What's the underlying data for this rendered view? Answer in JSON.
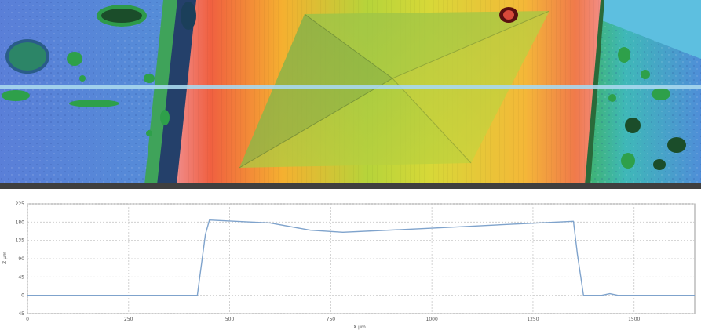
{
  "colors": {
    "separator": "#3f3f3f",
    "profile_line": "#7fa3cc",
    "grid": "#c8c8c8",
    "frame": "#9a9a9a",
    "scan_line": "#a8d8ee",
    "height_low": "#4b67c8",
    "height_mid": "#9fdc3a",
    "height_high": "#f07a4a"
  },
  "chart_data": {
    "type": "line",
    "title": "",
    "xlabel": "X µm",
    "ylabel": "Z µm",
    "xlim": [
      0,
      1650
    ],
    "ylim": [
      -45,
      225
    ],
    "grid": true,
    "legend": "none",
    "x_ticks": [
      0,
      250,
      500,
      750,
      1000,
      1250,
      1500
    ],
    "y_ticks": [
      -45,
      0,
      45,
      90,
      135,
      180,
      225
    ],
    "series": [
      {
        "name": "",
        "x": [
          0,
          420,
          440,
          450,
          600,
          700,
          780,
          1000,
          1200,
          1350,
          1360,
          1375,
          1420,
          1440,
          1460,
          1650
        ],
        "y": [
          0,
          0,
          150,
          185,
          178,
          160,
          155,
          165,
          175,
          182,
          100,
          0,
          0,
          4,
          0,
          0
        ]
      }
    ]
  }
}
